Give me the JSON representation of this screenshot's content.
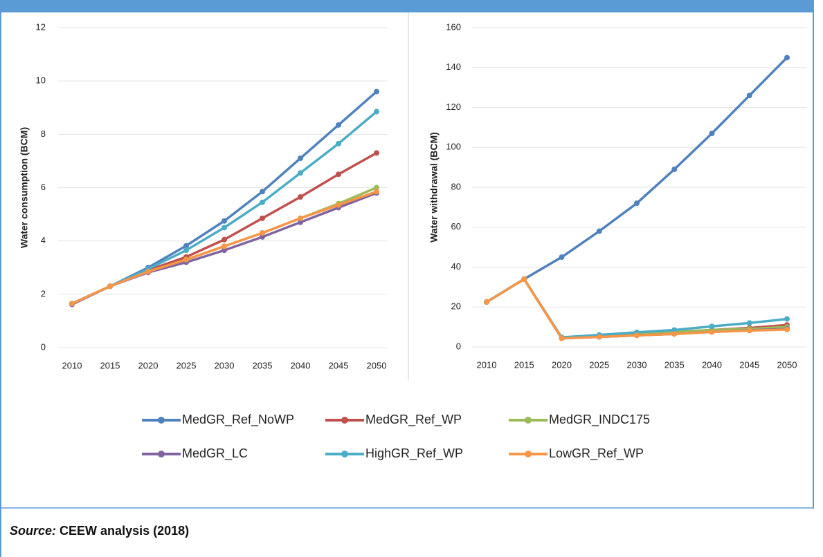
{
  "chart_data": [
    {
      "type": "line",
      "ylabel": "Water consumption (BCM)",
      "categories": [
        "2010",
        "2015",
        "2020",
        "2025",
        "2030",
        "2035",
        "2040",
        "2045",
        "2050"
      ],
      "ylim": [
        0,
        12
      ],
      "yticks": [
        0,
        2,
        4,
        6,
        8,
        10,
        12
      ],
      "grid": true,
      "series": [
        {
          "name": "MedGR_Ref_NoWP",
          "color": "#4f81bd",
          "values": [
            1.65,
            2.3,
            3.0,
            3.82,
            4.75,
            5.85,
            7.1,
            8.35,
            9.6
          ]
        },
        {
          "name": "MedGR_Ref_WP",
          "color": "#c0504d",
          "values": [
            1.65,
            2.3,
            2.9,
            3.4,
            4.05,
            4.85,
            5.65,
            6.5,
            7.3
          ]
        },
        {
          "name": "MedGR_INDC175",
          "color": "#9bbb59",
          "values": [
            1.65,
            2.3,
            2.85,
            3.3,
            3.8,
            4.3,
            4.85,
            5.4,
            6.0
          ]
        },
        {
          "name": "MedGR_LC",
          "color": "#8064a2",
          "values": [
            1.62,
            2.3,
            2.82,
            3.2,
            3.65,
            4.15,
            4.7,
            5.25,
            5.8
          ]
        },
        {
          "name": "HighGR_Ref_WP",
          "color": "#4bacc6",
          "values": [
            1.65,
            2.3,
            2.95,
            3.65,
            4.5,
            5.45,
            6.55,
            7.65,
            8.85
          ]
        },
        {
          "name": "LowGR_Ref_WP",
          "color": "#f79646",
          "values": [
            1.65,
            2.3,
            2.85,
            3.3,
            3.8,
            4.3,
            4.85,
            5.35,
            5.85
          ]
        }
      ]
    },
    {
      "type": "line",
      "ylabel": "Water withdrawal (BCM)",
      "categories": [
        "2010",
        "2015",
        "2020",
        "2025",
        "2030",
        "2035",
        "2040",
        "2045",
        "2050"
      ],
      "ylim": [
        0,
        160
      ],
      "yticks": [
        0,
        20,
        40,
        60,
        80,
        100,
        120,
        140,
        160
      ],
      "grid": true,
      "series": [
        {
          "color": "#4f81bd",
          "values": [
            22.5,
            34,
            45,
            58,
            72,
            89,
            107,
            126,
            145
          ]
        },
        {
          "color": "#c0504d",
          "values": [
            22.5,
            34,
            4.5,
            5.5,
            6.5,
            7.5,
            8.5,
            9.5,
            11
          ]
        },
        {
          "color": "#9bbb59",
          "values": [
            22.5,
            34,
            4.5,
            5.5,
            6.5,
            7.5,
            8.5,
            9,
            10
          ]
        },
        {
          "color": "#8064a2",
          "values": [
            22.5,
            34,
            4.3,
            5,
            5.8,
            6.5,
            7.5,
            8.3,
            9
          ]
        },
        {
          "color": "#4bacc6",
          "values": [
            22.5,
            34,
            4.8,
            6,
            7.3,
            8.5,
            10.3,
            12,
            14
          ]
        },
        {
          "color": "#f79646",
          "values": [
            22.5,
            34,
            4.3,
            5,
            5.8,
            6.5,
            7.5,
            8.2,
            8.7
          ]
        }
      ]
    }
  ],
  "source": {
    "label": "Source:",
    "text": "CEEW analysis (2018)"
  }
}
